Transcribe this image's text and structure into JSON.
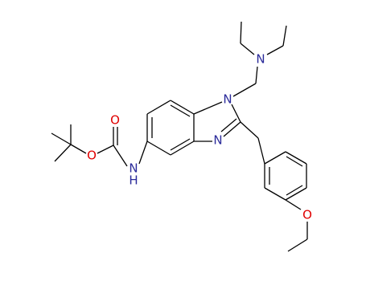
{
  "atoms": [
    {
      "label": "N"
    },
    {
      "label": "N"
    },
    {
      "label": "N"
    },
    {
      "label": "N"
    },
    {
      "label": "H"
    },
    {
      "label": "O"
    },
    {
      "label": "O"
    },
    {
      "label": "O"
    }
  ]
}
